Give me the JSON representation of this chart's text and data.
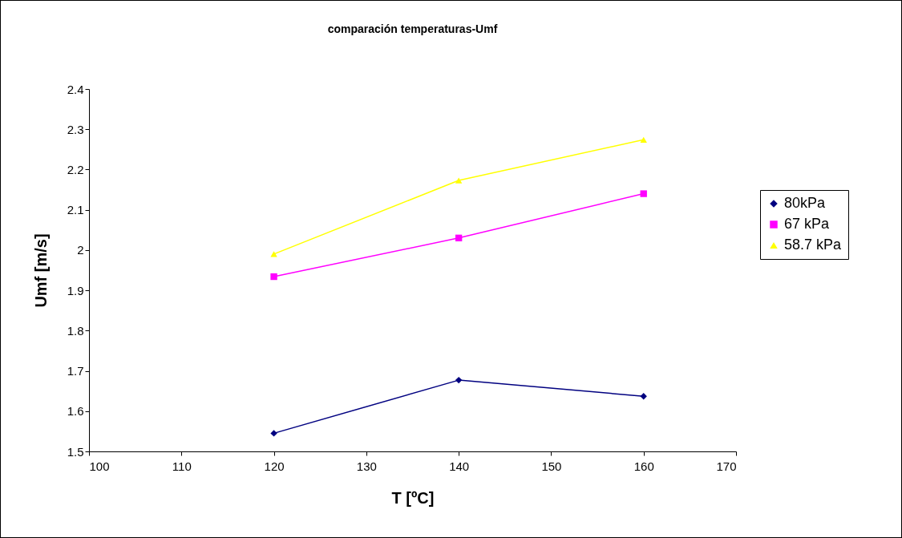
{
  "chart_data": {
    "type": "line",
    "title": "comparación temperaturas-Umf",
    "xlabel": "T [ºC]",
    "ylabel": "Umf [m/s]",
    "x": [
      120,
      140,
      160
    ],
    "series": [
      {
        "name": "80kPa",
        "color": "#000080",
        "marker": "diamond",
        "values": [
          1.545,
          1.677,
          1.637
        ]
      },
      {
        "name": "67 kPa",
        "color": "#ff00ff",
        "marker": "square",
        "values": [
          1.934,
          2.03,
          2.14
        ]
      },
      {
        "name": "58.7 kPa",
        "color": "#ffff00",
        "marker": "triangle",
        "values": [
          1.99,
          2.173,
          2.274
        ]
      }
    ],
    "xlim": [
      100,
      170
    ],
    "xticks": [
      100,
      110,
      120,
      130,
      140,
      150,
      160,
      170
    ],
    "ylim": [
      1.5,
      2.4
    ],
    "yticks": [
      1.5,
      1.6,
      1.7,
      1.8,
      1.9,
      2,
      2.1,
      2.2,
      2.3,
      2.4
    ],
    "grid": false,
    "legend": "right",
    "line_style": "solid"
  }
}
